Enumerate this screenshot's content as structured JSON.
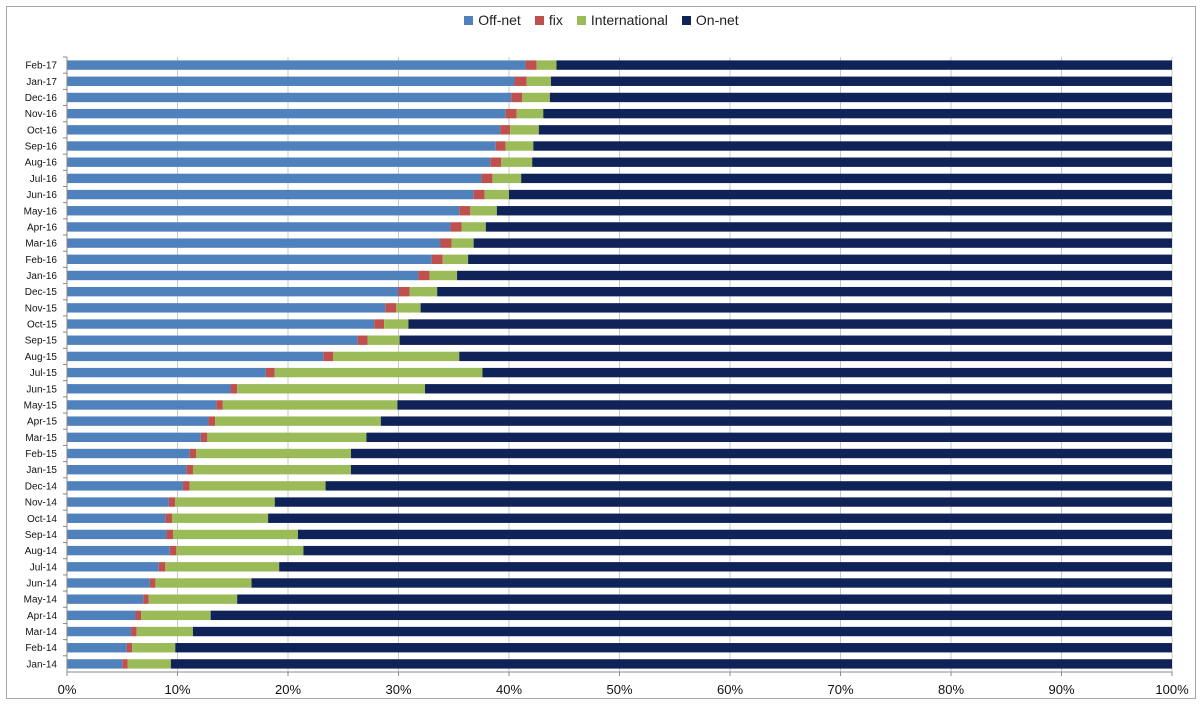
{
  "chart_data": {
    "type": "bar",
    "orientation": "horizontal",
    "stacking": "percent",
    "title": "",
    "xlabel": "",
    "ylabel": "",
    "xlim": [
      0,
      100
    ],
    "grid": true,
    "legend_position": "top",
    "x_ticks": [
      "0%",
      "10%",
      "20%",
      "30%",
      "40%",
      "50%",
      "60%",
      "70%",
      "80%",
      "90%",
      "100%"
    ],
    "categories": [
      "Feb-17",
      "Jan-17",
      "Dec-16",
      "Nov-16",
      "Oct-16",
      "Sep-16",
      "Aug-16",
      "Jul-16",
      "Jun-16",
      "May-16",
      "Apr-16",
      "Mar-16",
      "Feb-16",
      "Jan-16",
      "Dec-15",
      "Nov-15",
      "Oct-15",
      "Sep-15",
      "Aug-15",
      "Jul-15",
      "Jun-15",
      "May-15",
      "Apr-15",
      "Mar-15",
      "Feb-15",
      "Jan-15",
      "Dec-14",
      "Nov-14",
      "Oct-14",
      "Sep-14",
      "Aug-14",
      "Jul-14",
      "Jun-14",
      "May-14",
      "Apr-14",
      "Mar-14",
      "Feb-14",
      "Jan-14"
    ],
    "series": [
      {
        "name": "Off-net",
        "color": "#4f81bd",
        "values": [
          41.5,
          40.5,
          40.2,
          39.7,
          39.2,
          38.8,
          38.3,
          37.5,
          36.8,
          35.5,
          34.7,
          33.8,
          33.0,
          31.8,
          30.0,
          28.8,
          27.8,
          26.3,
          23.2,
          18.0,
          14.8,
          13.5,
          12.8,
          12.1,
          11.1,
          10.8,
          10.5,
          9.2,
          8.9,
          9.0,
          9.3,
          8.3,
          7.5,
          6.9,
          6.2,
          5.8,
          5.4,
          5.0
        ]
      },
      {
        "name": "fix",
        "color": "#c0504d",
        "values": [
          1.0,
          1.1,
          1.0,
          1.0,
          0.9,
          0.9,
          1.0,
          1.0,
          1.0,
          1.0,
          1.0,
          1.0,
          1.0,
          1.0,
          1.0,
          1.0,
          0.9,
          0.9,
          0.9,
          0.8,
          0.6,
          0.6,
          0.6,
          0.6,
          0.6,
          0.6,
          0.6,
          0.6,
          0.6,
          0.6,
          0.6,
          0.6,
          0.5,
          0.5,
          0.5,
          0.5,
          0.5,
          0.5
        ]
      },
      {
        "name": "International",
        "color": "#9bbb59",
        "values": [
          1.8,
          2.2,
          2.5,
          2.4,
          2.6,
          2.5,
          2.8,
          2.6,
          2.2,
          2.4,
          2.2,
          2.0,
          2.3,
          2.5,
          2.5,
          2.2,
          2.2,
          2.9,
          11.4,
          18.8,
          17.0,
          15.8,
          15.0,
          14.4,
          14.0,
          14.3,
          12.3,
          9.0,
          8.7,
          11.3,
          11.5,
          10.3,
          8.7,
          8.0,
          6.3,
          5.1,
          3.9,
          3.9
        ]
      },
      {
        "name": "On-net",
        "color": "#0f2358",
        "values": [
          55.7,
          56.2,
          56.3,
          56.9,
          57.3,
          57.8,
          57.9,
          58.9,
          60.0,
          61.1,
          62.1,
          63.2,
          63.7,
          64.7,
          66.5,
          68.0,
          69.1,
          69.9,
          64.5,
          62.4,
          67.6,
          70.1,
          71.6,
          72.9,
          74.3,
          74.3,
          76.6,
          81.2,
          81.8,
          79.1,
          78.6,
          80.8,
          83.3,
          84.6,
          87.0,
          88.6,
          90.2,
          90.6
        ]
      }
    ]
  }
}
